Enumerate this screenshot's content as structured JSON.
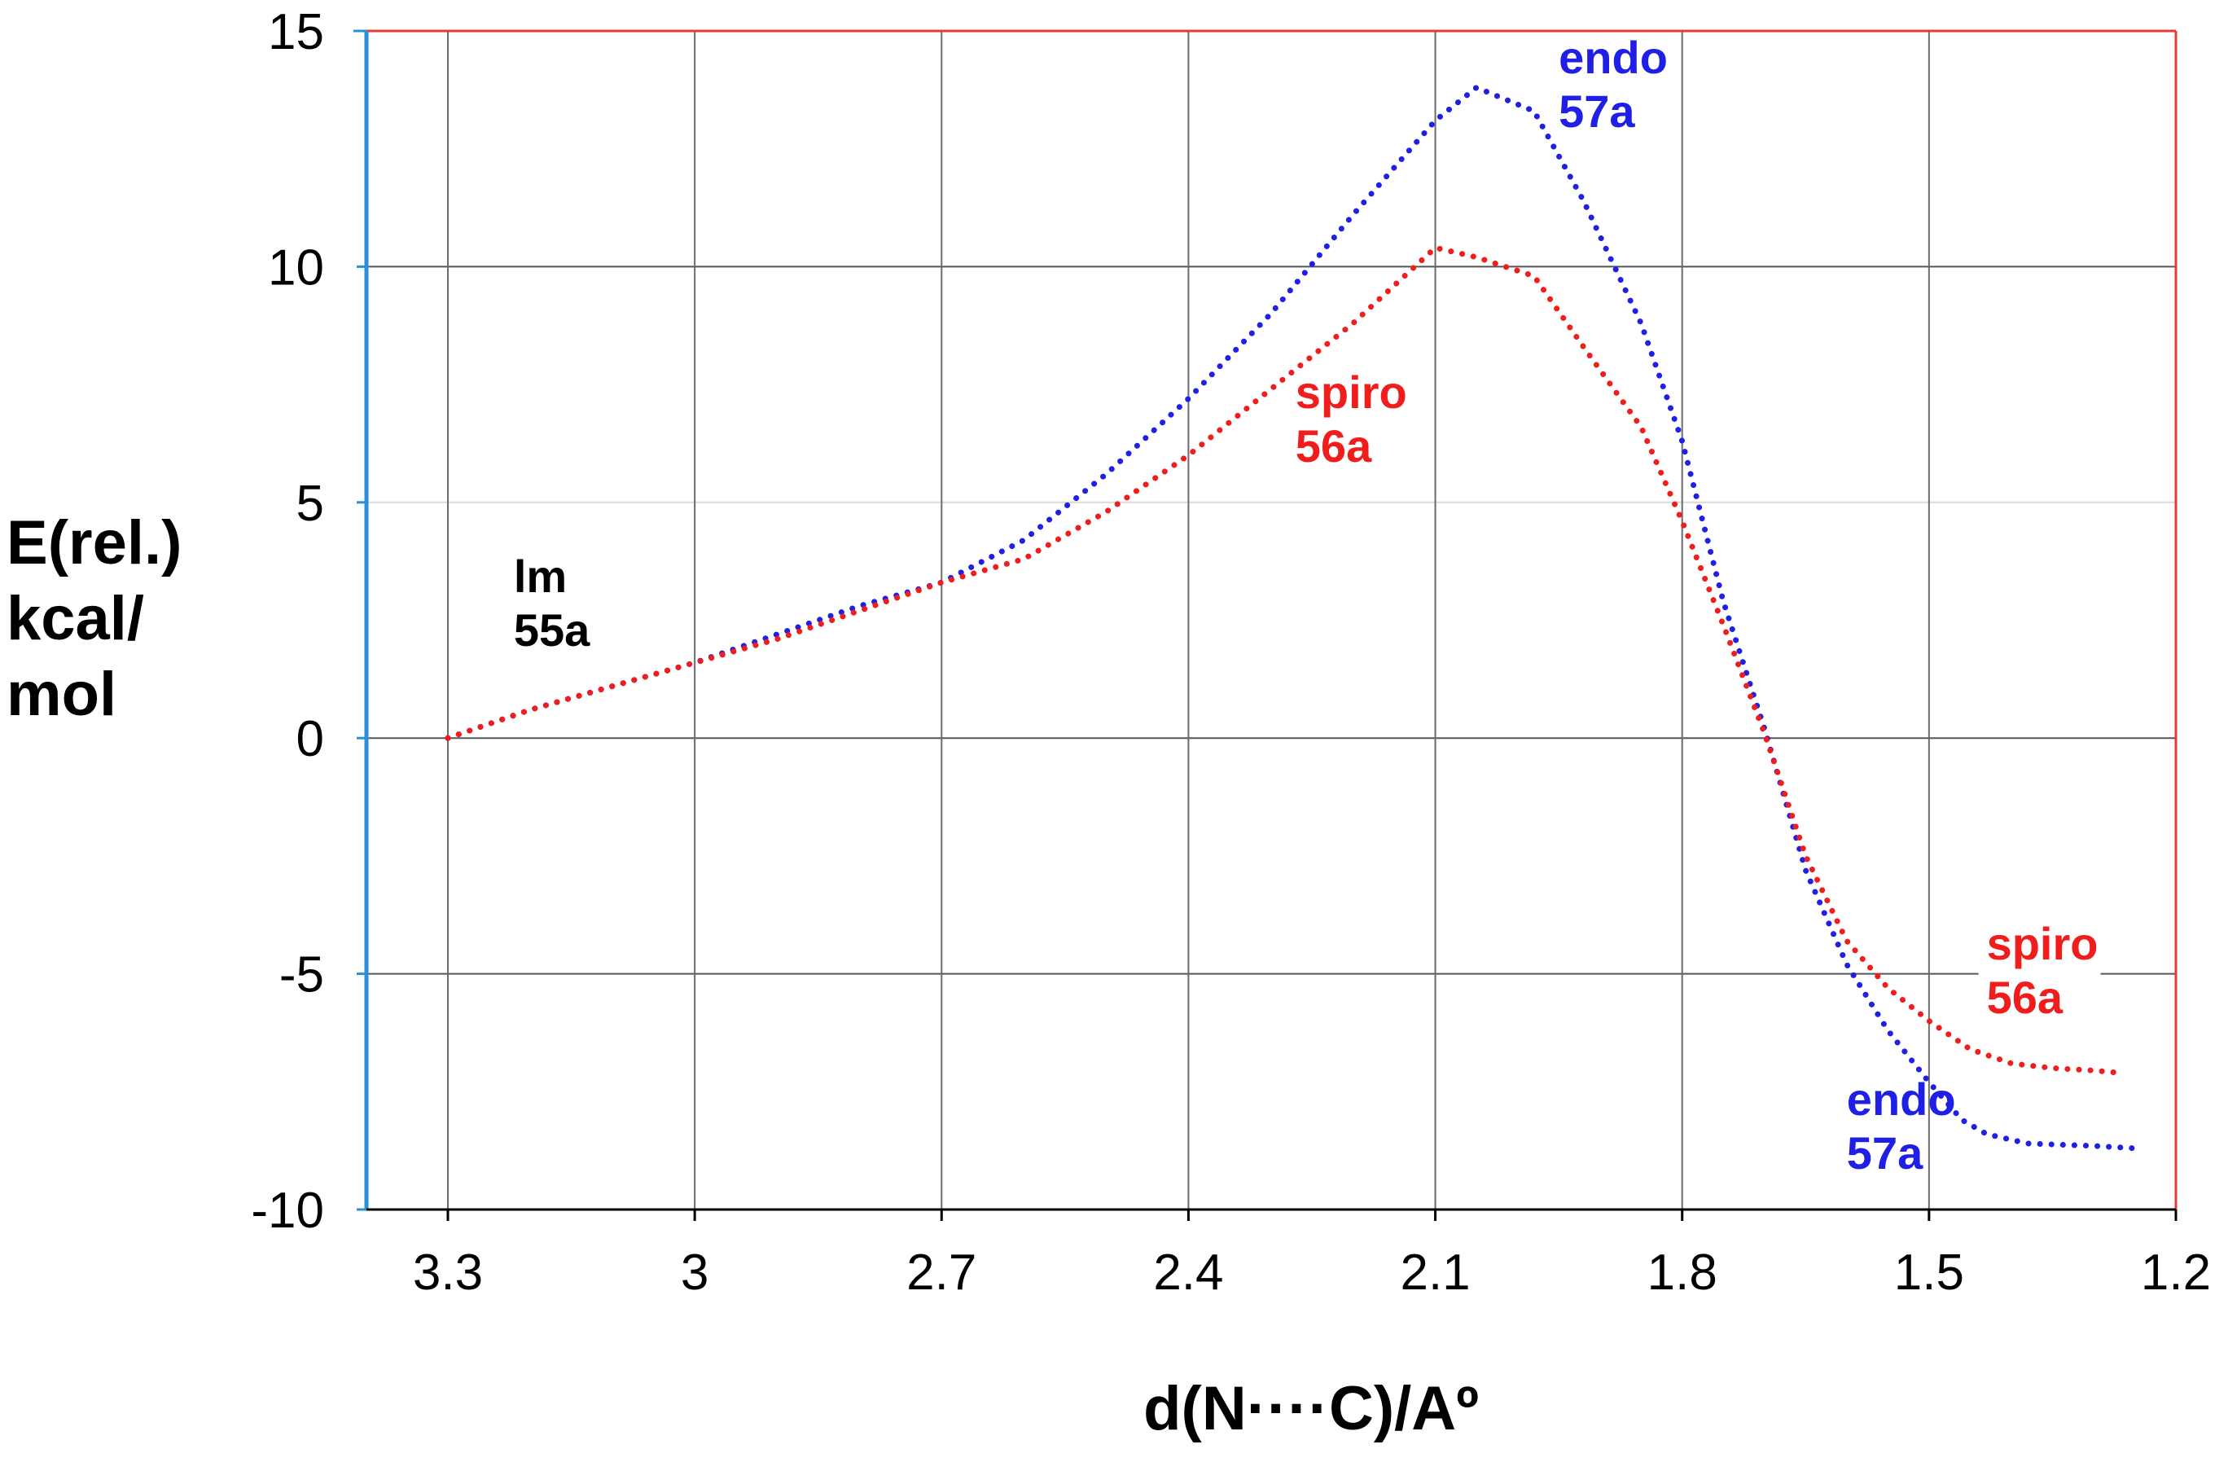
{
  "chart_data": {
    "type": "line",
    "xlabel": "d(N····C)/Aº",
    "ylabel_lines": [
      "E(rel.)",
      "kcal/",
      "mol"
    ],
    "xlim": [
      3.3,
      1.2
    ],
    "x_reversed": true,
    "ylim": [
      -10,
      15
    ],
    "x_ticks": [
      3.3,
      3.0,
      2.7,
      2.4,
      2.1,
      1.8,
      1.5,
      1.2
    ],
    "x_tick_labels": [
      "3.3",
      "3",
      "2.7",
      "2.4",
      "2.1",
      "1.8",
      "1.5",
      "1.2"
    ],
    "y_ticks": [
      15,
      10,
      5,
      0,
      -5,
      -10
    ],
    "y_tick_labels": [
      "15",
      "10",
      "5",
      "0",
      "-5",
      "-10"
    ],
    "grid": true,
    "colors": {
      "endo": "#1f1fe6",
      "spiro": "#f01d1d",
      "left_axis": "#2a8fd6",
      "frame": "#e53935"
    },
    "series": [
      {
        "key": "endo",
        "x": [
          3.3,
          3.2,
          3.1,
          3.0,
          2.9,
          2.8,
          2.7,
          2.6,
          2.5,
          2.4,
          2.3,
          2.2,
          2.1,
          2.05,
          1.98,
          1.92,
          1.85,
          1.8,
          1.75,
          1.7,
          1.65,
          1.6,
          1.55,
          1.5,
          1.46,
          1.43,
          1.38,
          1.3,
          1.25
        ],
        "y": [
          0,
          0.6,
          1.1,
          1.6,
          2.2,
          2.8,
          3.3,
          4.2,
          5.6,
          7.2,
          9.0,
          11.1,
          13.1,
          13.8,
          13.3,
          11.4,
          8.8,
          6.3,
          2.9,
          0.2,
          -2.8,
          -4.8,
          -6.2,
          -7.3,
          -8.1,
          -8.4,
          -8.6,
          -8.65,
          -8.7
        ]
      },
      {
        "key": "spiro",
        "x": [
          3.3,
          3.2,
          3.1,
          3.0,
          2.9,
          2.8,
          2.7,
          2.6,
          2.5,
          2.4,
          2.3,
          2.2,
          2.15,
          2.1,
          2.05,
          1.98,
          1.92,
          1.85,
          1.8,
          1.75,
          1.7,
          1.65,
          1.6,
          1.55,
          1.5,
          1.45,
          1.4,
          1.35,
          1.3,
          1.27
        ],
        "y": [
          0,
          0.6,
          1.1,
          1.6,
          2.1,
          2.7,
          3.3,
          3.8,
          4.8,
          6.0,
          7.4,
          8.8,
          9.6,
          10.4,
          10.2,
          9.8,
          8.3,
          6.6,
          4.6,
          2.4,
          0.1,
          -2.5,
          -4.3,
          -5.3,
          -6.0,
          -6.6,
          -6.9,
          -7.0,
          -7.05,
          -7.1
        ]
      }
    ],
    "annotations": [
      {
        "lines": [
          "endo",
          "57a"
        ],
        "color_key": "endo",
        "x": 1.95,
        "y": 14.1
      },
      {
        "lines": [
          "spiro",
          "56a"
        ],
        "color_key": "spiro",
        "x": 2.27,
        "y": 7.0
      },
      {
        "lines": [
          "lm",
          "55a"
        ],
        "color_key": "text",
        "x": 3.22,
        "y": 3.1
      },
      {
        "lines": [
          "spiro",
          "56a"
        ],
        "color_key": "spiro",
        "x": 1.43,
        "y": -4.7
      },
      {
        "lines": [
          "endo",
          "57a"
        ],
        "color_key": "endo",
        "x": 1.6,
        "y": -8.0
      }
    ]
  }
}
